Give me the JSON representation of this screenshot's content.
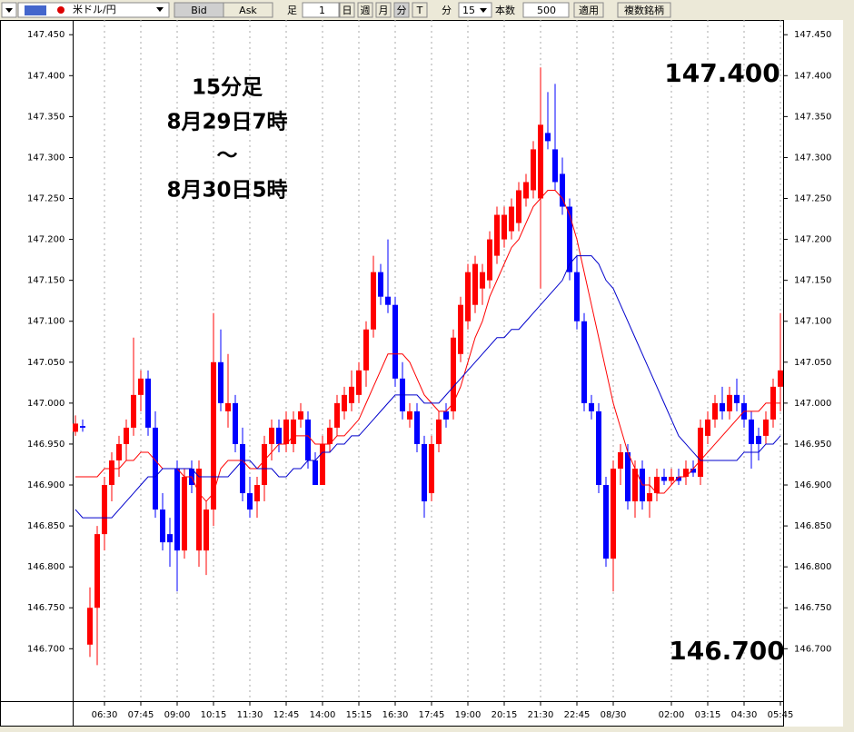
{
  "toolbar": {
    "symbol": "米ドル/円",
    "bid": "Bid",
    "ask": "Ask",
    "bar_label": "足",
    "bar_count": "1",
    "day": "日",
    "week": "週",
    "month": "月",
    "minute": "分",
    "tick": "T",
    "unit_label": "分",
    "unit_value": "15",
    "count_label": "本数",
    "count_value": "500",
    "apply": "適用",
    "multi": "複数銘柄"
  },
  "chart_data": {
    "type": "candlestick",
    "annotations": [
      "15分足",
      "8月29日7時",
      "～",
      "8月30日5時"
    ],
    "price_high_label": "147.400",
    "price_low_label": "146.700",
    "up_color": "#ff0000",
    "down_color": "#0000ff",
    "grid": "x",
    "ylim": [
      146.636,
      147.468
    ],
    "yticks": [
      {
        "value": 146.7,
        "label": "146.700"
      },
      {
        "value": 146.75,
        "label": "146.750"
      },
      {
        "value": 146.8,
        "label": "146.800"
      },
      {
        "value": 146.85,
        "label": "146.850"
      },
      {
        "value": 146.9,
        "label": "146.900"
      },
      {
        "value": 146.95,
        "label": "146.950"
      },
      {
        "value": 147.0,
        "label": "147.000"
      },
      {
        "value": 147.05,
        "label": "147.050"
      },
      {
        "value": 147.1,
        "label": "147.100"
      },
      {
        "value": 147.15,
        "label": "147.150"
      },
      {
        "value": 147.2,
        "label": "147.200"
      },
      {
        "value": 147.25,
        "label": "147.250"
      },
      {
        "value": 147.3,
        "label": "147.300"
      },
      {
        "value": 147.35,
        "label": "147.350"
      },
      {
        "value": 147.4,
        "label": "147.400"
      },
      {
        "value": 147.45,
        "label": "147.450"
      }
    ],
    "categories": [
      null,
      null,
      null,
      null,
      "06:30",
      null,
      null,
      null,
      null,
      "07:45",
      null,
      null,
      null,
      null,
      "09:00",
      null,
      null,
      null,
      null,
      "10:15",
      null,
      null,
      null,
      null,
      "11:30",
      null,
      null,
      null,
      null,
      "12:45",
      null,
      null,
      null,
      null,
      "14:00",
      null,
      null,
      null,
      null,
      "15:15",
      null,
      null,
      null,
      null,
      "16:30",
      null,
      null,
      null,
      null,
      "17:45",
      null,
      null,
      null,
      null,
      "19:00",
      null,
      null,
      null,
      null,
      "20:15",
      null,
      null,
      null,
      null,
      "21:30",
      null,
      null,
      null,
      null,
      "22:45",
      null,
      null,
      null,
      null,
      "08/30",
      null,
      null,
      null,
      null,
      null,
      null,
      null,
      "02:00",
      null,
      null,
      null,
      null,
      "03:15",
      null,
      null,
      null,
      null,
      "04:30",
      null,
      null,
      null,
      null,
      "05:45"
    ],
    "open": [
      146.965,
      146.972,
      146.705,
      146.75,
      146.84,
      146.9,
      146.93,
      146.95,
      146.97,
      147.01,
      147.03,
      146.97,
      146.87,
      146.84,
      146.92,
      146.82,
      146.92,
      146.82,
      146.82,
      146.87,
      147.05,
      146.99,
      147.0,
      146.95,
      146.89,
      146.88,
      146.9,
      146.95,
      146.97,
      146.95,
      146.95,
      146.98,
      146.98,
      146.93,
      146.9,
      146.95,
      146.97,
      146.99,
      147.0,
      147.01,
      147.04,
      147.09,
      147.16,
      147.13,
      147.12,
      147.03,
      146.98,
      146.99,
      146.95,
      146.89,
      146.95,
      146.99,
      146.99,
      147.06,
      147.1,
      147.12,
      147.14,
      147.15,
      147.18,
      147.2,
      147.21,
      147.22,
      147.25,
      147.26,
      147.25,
      147.33,
      147.31,
      147.28,
      147.24,
      147.16,
      147.1,
      147.0,
      146.99,
      146.9,
      146.81,
      146.92,
      146.94,
      146.88,
      146.92,
      146.88,
      146.89,
      146.91,
      146.905,
      146.91,
      146.91,
      146.92,
      146.91,
      146.96,
      146.98,
      147.0,
      146.99,
      147.01,
      147.0,
      146.98,
      146.96,
      146.96,
      146.98,
      147.02
    ],
    "high": [
      146.985,
      146.98,
      146.775,
      146.85,
      146.91,
      146.94,
      146.96,
      146.98,
      147.08,
      147.04,
      147.04,
      146.99,
      146.89,
      146.86,
      146.93,
      146.92,
      146.93,
      146.93,
      146.88,
      147.11,
      147.09,
      147.06,
      147.01,
      146.97,
      146.91,
      146.91,
      146.96,
      146.98,
      146.98,
      146.99,
      146.99,
      147.0,
      146.99,
      146.94,
      146.96,
      146.98,
      147.01,
      147.02,
      147.04,
      147.05,
      147.1,
      147.18,
      147.17,
      147.2,
      147.13,
      147.05,
      147.0,
      147.0,
      146.96,
      146.96,
      146.99,
      147.0,
      147.09,
      147.13,
      147.17,
      147.18,
      147.17,
      147.21,
      147.24,
      147.24,
      147.25,
      147.27,
      147.28,
      147.32,
      147.41,
      147.38,
      147.39,
      147.3,
      147.25,
      147.18,
      147.11,
      147.01,
      147.0,
      146.91,
      146.93,
      146.95,
      146.95,
      146.93,
      146.93,
      146.91,
      146.92,
      146.92,
      146.92,
      146.92,
      146.93,
      146.93,
      146.98,
      146.99,
      147.01,
      147.02,
      147.02,
      147.03,
      147.01,
      146.99,
      146.97,
      146.99,
      147.03,
      147.11
    ],
    "low": [
      146.96,
      146.965,
      146.69,
      146.68,
      146.82,
      146.88,
      146.91,
      146.93,
      146.96,
      146.99,
      146.96,
      146.86,
      146.82,
      146.8,
      146.77,
      146.81,
      146.89,
      146.8,
      146.79,
      146.85,
      146.99,
      146.97,
      146.94,
      146.88,
      146.86,
      146.86,
      146.88,
      146.93,
      146.94,
      146.94,
      146.94,
      146.97,
      146.92,
      146.9,
      146.9,
      146.94,
      146.96,
      146.98,
      146.99,
      147.0,
      147.02,
      147.08,
      147.12,
      147.11,
      147.02,
      146.98,
      146.97,
      146.94,
      146.86,
      146.88,
      146.94,
      146.97,
      146.98,
      147.05,
      147.09,
      147.11,
      147.12,
      147.14,
      147.17,
      147.19,
      147.2,
      147.21,
      147.24,
      147.25,
      147.14,
      147.31,
      147.26,
      147.23,
      147.15,
      147.09,
      146.99,
      146.98,
      146.89,
      146.8,
      146.77,
      146.9,
      146.87,
      146.86,
      146.87,
      146.86,
      146.88,
      146.9,
      146.9,
      146.9,
      146.9,
      146.91,
      146.9,
      146.95,
      146.97,
      146.98,
      146.98,
      146.99,
      146.97,
      146.92,
      146.93,
      146.95,
      146.97,
      146.99
    ],
    "close": [
      146.975,
      146.97,
      146.75,
      146.84,
      146.9,
      146.93,
      146.95,
      146.97,
      147.01,
      147.03,
      146.97,
      146.87,
      146.83,
      146.83,
      146.82,
      146.91,
      146.9,
      146.92,
      146.87,
      147.05,
      147.0,
      147.0,
      146.95,
      146.89,
      146.87,
      146.9,
      146.95,
      146.97,
      146.95,
      146.98,
      146.98,
      146.99,
      146.93,
      146.9,
      146.95,
      146.97,
      147.0,
      147.01,
      147.02,
      147.04,
      147.09,
      147.16,
      147.13,
      147.12,
      147.03,
      146.99,
      146.99,
      146.95,
      146.88,
      146.95,
      146.98,
      146.98,
      147.08,
      147.12,
      147.16,
      147.17,
      147.16,
      147.2,
      147.23,
      147.23,
      147.24,
      147.26,
      147.27,
      147.31,
      147.34,
      147.32,
      147.27,
      147.24,
      147.16,
      147.1,
      147.0,
      146.99,
      146.9,
      146.81,
      146.92,
      146.94,
      146.88,
      146.92,
      146.88,
      146.89,
      146.91,
      146.905,
      146.91,
      146.905,
      146.92,
      146.915,
      146.97,
      146.98,
      147.0,
      146.99,
      147.01,
      147.0,
      146.98,
      146.95,
      146.95,
      146.98,
      147.02,
      147.04
    ],
    "lines": [
      {
        "color": "#ff0000",
        "values": [
          146.91,
          146.91,
          146.91,
          146.91,
          146.92,
          146.92,
          146.92,
          146.93,
          146.93,
          146.94,
          146.94,
          146.93,
          146.92,
          146.92,
          146.92,
          146.91,
          146.91,
          146.89,
          146.88,
          146.89,
          146.92,
          146.93,
          146.93,
          146.93,
          146.92,
          146.92,
          146.93,
          146.94,
          146.95,
          146.95,
          146.96,
          146.96,
          146.96,
          146.95,
          146.95,
          146.95,
          146.96,
          146.96,
          146.97,
          146.98,
          147.0,
          147.02,
          147.04,
          147.06,
          147.06,
          147.06,
          147.05,
          147.03,
          147.01,
          147.0,
          146.99,
          146.99,
          147.0,
          147.02,
          147.05,
          147.08,
          147.1,
          147.13,
          147.15,
          147.17,
          147.19,
          147.2,
          147.22,
          147.24,
          147.25,
          147.26,
          147.26,
          147.25,
          147.23,
          147.2,
          147.16,
          147.12,
          147.08,
          147.04,
          147.0,
          146.97,
          146.94,
          146.92,
          146.9,
          146.9,
          146.89,
          146.89,
          146.9,
          146.91,
          146.91,
          146.92,
          146.93,
          146.94,
          146.95,
          146.96,
          146.97,
          146.98,
          146.99,
          146.99,
          146.99,
          147.0,
          147.0,
          147.0
        ]
      },
      {
        "color": "#0000cc",
        "values": [
          146.87,
          146.86,
          146.86,
          146.86,
          146.86,
          146.86,
          146.87,
          146.88,
          146.89,
          146.9,
          146.91,
          146.91,
          146.92,
          146.92,
          146.92,
          146.92,
          146.92,
          146.91,
          146.91,
          146.91,
          146.91,
          146.91,
          146.92,
          146.93,
          146.93,
          146.92,
          146.92,
          146.92,
          146.91,
          146.91,
          146.92,
          146.92,
          146.93,
          146.93,
          146.94,
          146.94,
          146.95,
          146.95,
          146.96,
          146.96,
          146.97,
          146.98,
          146.99,
          147.0,
          147.01,
          147.01,
          147.01,
          147.01,
          147.0,
          147.0,
          147.0,
          147.01,
          147.02,
          147.03,
          147.04,
          147.05,
          147.06,
          147.07,
          147.08,
          147.08,
          147.09,
          147.09,
          147.1,
          147.11,
          147.12,
          147.13,
          147.14,
          147.15,
          147.17,
          147.18,
          147.18,
          147.18,
          147.17,
          147.15,
          147.14,
          147.12,
          147.1,
          147.08,
          147.06,
          147.04,
          147.02,
          147.0,
          146.98,
          146.96,
          146.95,
          146.94,
          146.93,
          146.93,
          146.93,
          146.93,
          146.93,
          146.93,
          146.94,
          146.94,
          146.94,
          146.95,
          146.95,
          146.96
        ]
      }
    ]
  }
}
